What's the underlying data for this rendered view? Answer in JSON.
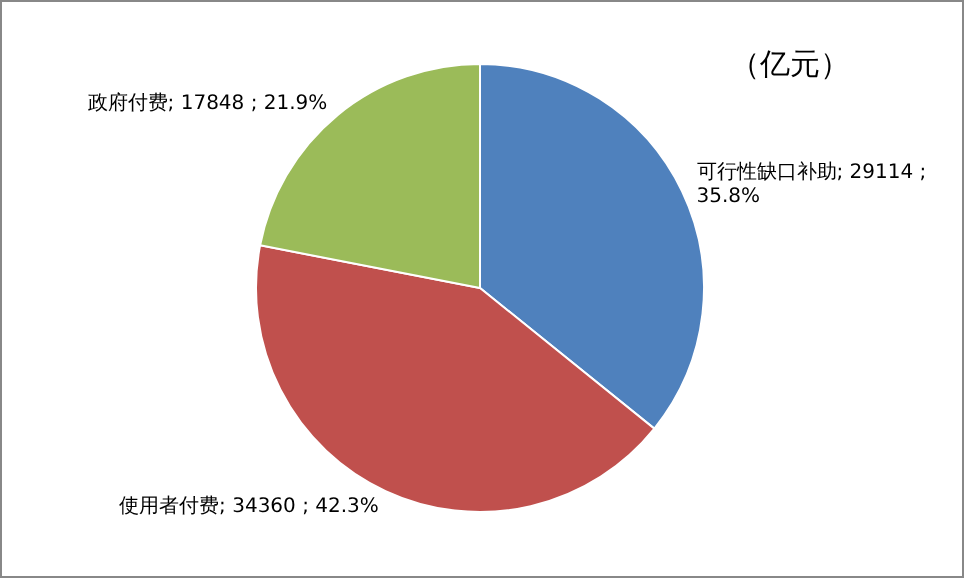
{
  "chart_data": {
    "type": "pie",
    "title": "（亿元）",
    "categories": [
      "可行性缺口补助",
      "使用者付费",
      "政府付费"
    ],
    "values": [
      29114,
      34360,
      17848
    ],
    "value_labels": [
      "29114 ; 35.8%",
      "34360 ; 42.3%",
      "17848 ; 21.9%"
    ],
    "colors": [
      "#4f81bd",
      "#c0504d",
      "#9bbb59"
    ],
    "legend": false
  }
}
